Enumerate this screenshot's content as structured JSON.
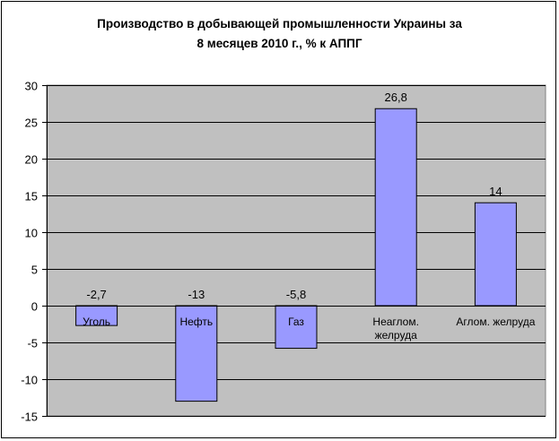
{
  "chart_data": {
    "type": "bar",
    "title": "Производство в добывающей промышленности Украины за\n8 месяцев 2010 г., % к АППГ",
    "categories": [
      "Уголь",
      "Нефть",
      "Газ",
      "Неаглом.\nжелруда",
      "Аглом. желруда"
    ],
    "values": [
      -2.7,
      -13,
      -5.8,
      26.8,
      14
    ],
    "data_labels": [
      "-2,7",
      "-13",
      "-5,8",
      "26,8",
      "14"
    ],
    "ylim": [
      -15,
      30
    ],
    "yticks": [
      30,
      25,
      20,
      15,
      10,
      5,
      0,
      -5,
      -10,
      -15
    ],
    "ytick_labels": [
      "30",
      "25",
      "20",
      "15",
      "10",
      "5",
      "0",
      "-5",
      "-10",
      "-15"
    ],
    "grid": true,
    "legend": "none",
    "colors": {
      "plot_background": "#c0c0c0",
      "bar_fill": "#9999ff",
      "bar_stroke": "#000000",
      "grid": "#000000"
    }
  }
}
